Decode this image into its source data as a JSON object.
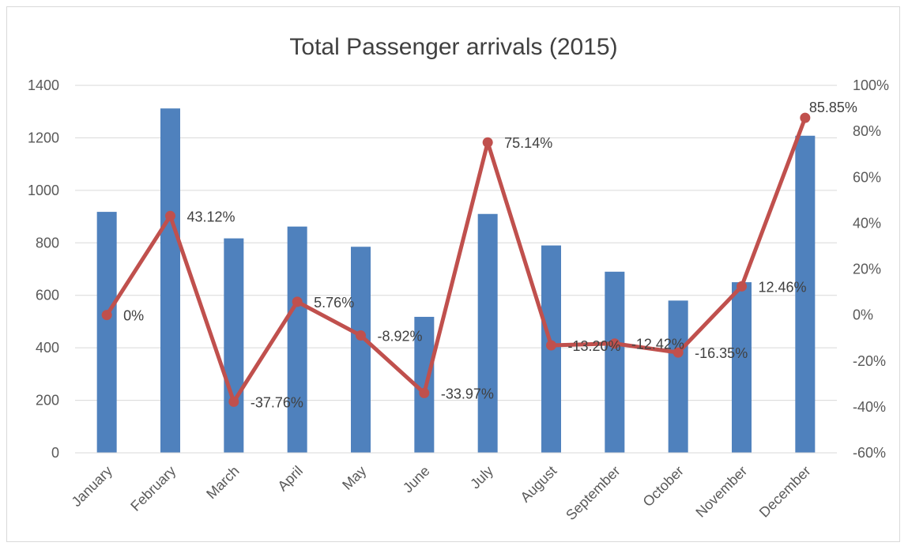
{
  "chart_data": {
    "type": "bar+line",
    "title": "Total Passenger arrivals (2015)",
    "categories": [
      "January",
      "February",
      "March",
      "April",
      "May",
      "June",
      "July",
      "August",
      "September",
      "October",
      "November",
      "December"
    ],
    "series": [
      {
        "type": "bar",
        "axis": "left",
        "values": [
          918,
          1312,
          817,
          862,
          785,
          518,
          910,
          790,
          690,
          580,
          650,
          1208
        ]
      },
      {
        "type": "line",
        "axis": "right",
        "values": [
          0,
          43.12,
          -37.76,
          5.76,
          -8.92,
          -33.97,
          75.14,
          -13.2,
          -12.42,
          -16.35,
          12.46,
          85.85
        ],
        "data_labels": [
          "0%",
          "43.12%",
          "-37.76%",
          "5.76%",
          "-8.92%",
          "-33.97%",
          "75.14%",
          "-13.20%",
          "-12.42%",
          "-16.35%",
          "12.46%",
          "85.85%"
        ]
      }
    ],
    "y_left": {
      "range": [
        0,
        1400
      ],
      "ticks": [
        "0",
        "200",
        "400",
        "600",
        "800",
        "1000",
        "1200",
        "1400"
      ]
    },
    "y_right": {
      "range": [
        -60,
        100
      ],
      "ticks": [
        "-60%",
        "-40%",
        "-20%",
        "0%",
        "20%",
        "40%",
        "60%",
        "80%",
        "100%"
      ]
    },
    "grid": true,
    "legend": "none",
    "colors": {
      "bar": "#4f81bd",
      "line": "#c0504d",
      "grid": "#d9d9d9",
      "text": "#595959"
    }
  }
}
